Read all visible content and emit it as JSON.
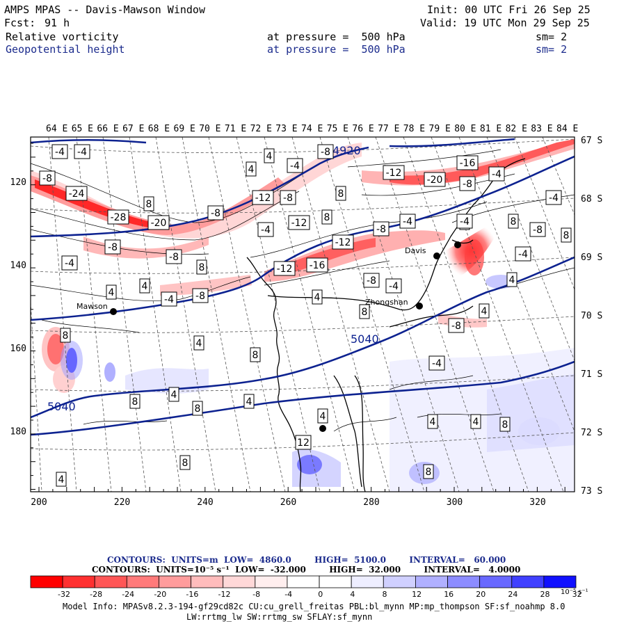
{
  "header": {
    "title": "AMPS MPAS -- Davis-Mawson Window",
    "init": "Init: 00 UTC Fri 26 Sep 25",
    "fcst_label": "Fcst:",
    "fcst_value": "91 h",
    "valid": "Valid: 19 UTC Mon 29 Sep 25",
    "field1": {
      "name": "Relative vorticity",
      "level": "at pressure =  500 hPa",
      "smooth": "sm= 2"
    },
    "field2": {
      "name": "Geopotential height",
      "level": "at pressure =  500 hPa",
      "smooth": "sm= 2"
    }
  },
  "map": {
    "top_lon_labels": [
      "64 E",
      "65 E",
      "66 E",
      "67 E",
      "68 E",
      "69 E",
      "70 E",
      "71 E",
      "72 E",
      "73 E",
      "74 E",
      "75 E",
      "76 E",
      "77 E",
      "78 E",
      "79 E",
      "80 E",
      "81 E",
      "82 E",
      "83 E",
      "84 E"
    ],
    "right_lat_labels": [
      "67 S",
      "68 S",
      "69 S",
      "70 S",
      "71 S",
      "72 S",
      "73 S"
    ],
    "left_grid_labels": [
      "120",
      "140",
      "160",
      "180"
    ],
    "bottom_grid_labels": [
      "200",
      "220",
      "240",
      "260",
      "280",
      "300",
      "320"
    ],
    "stations": [
      "Mawson",
      "Zhongshan",
      "Davis"
    ],
    "height_labels": [
      "4920",
      "5040",
      "5040"
    ],
    "vort_box_labels": [
      "-4",
      "-4",
      "4",
      "-8",
      "4",
      "-4",
      "-8",
      "-16",
      "-12",
      "-20",
      "-8",
      "-4",
      "-24",
      "8",
      "-12",
      "-8",
      "8",
      "-4",
      "-28",
      "-20",
      "-8",
      "-4",
      "-8",
      "4",
      "-12",
      "-8",
      "8",
      "-8",
      "-4",
      "-12",
      "-8",
      "-16",
      "-12",
      "8",
      "-4",
      "-8",
      "4",
      "4",
      "-4",
      "-8",
      "4",
      "-4",
      "8",
      "8",
      "-8",
      "4",
      "4",
      "-4",
      "8",
      "-4",
      "4",
      "8",
      "8",
      "-4",
      "8",
      "4",
      "8",
      "4",
      "4",
      "4",
      "4",
      "8",
      "12",
      "8",
      "4",
      "8"
    ],
    "colors": {
      "height_contour": "#0d2290",
      "coast": "#000000",
      "grid": "#555555"
    }
  },
  "colorbar": {
    "contours1": "CONTOURS:  UNITS=m  LOW=  4860.0        HIGH=  5100.0        INTERVAL=   60.000",
    "contours2": "CONTOURS:  UNITS=10⁻⁵ s⁻¹  LOW=  -32.000        HIGH=  32.000        INTERVAL=   4.0000",
    "tick_labels": [
      "-32",
      "-28",
      "-24",
      "-20",
      "-16",
      "-12",
      "-8",
      "-4",
      "0",
      "4",
      "8",
      "12",
      "16",
      "20",
      "24",
      "28",
      "32"
    ],
    "units": "10⁻⁵ s⁻¹",
    "colors": [
      "#ff0000",
      "#ff3030",
      "#ff5656",
      "#ff7a7a",
      "#ff9c9c",
      "#ffbcbc",
      "#ffd8d8",
      "#ffeeee",
      "#ffffff",
      "#ffffff",
      "#eeeeff",
      "#d0d0ff",
      "#b0b0ff",
      "#8c8cff",
      "#6868ff",
      "#4040ff",
      "#1010ff"
    ]
  },
  "footer": {
    "line1": "Model Info: MPASv8.2.3-194-gf29cd82c CU:cu_grell_freitas PBL:bl_mynn MP:mp_thompson SF:sf_noahmp 8.0",
    "line2": "LW:rrtmg_lw SW:rrtmg_sw SFLAY:sf_mynn"
  }
}
